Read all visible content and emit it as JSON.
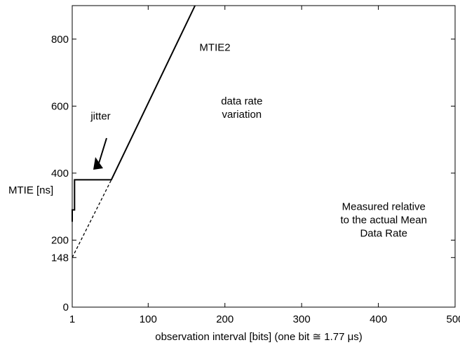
{
  "chart_data": {
    "type": "line",
    "title": "",
    "xlabel": "observation interval  [bits]  (one bit ≅ 1.77 μs)",
    "ylabel": "MTIE  [ns]",
    "xlim": [
      1,
      500
    ],
    "ylim": [
      0,
      900
    ],
    "x_ticks": [
      {
        "value": 1,
        "label": "1"
      },
      {
        "value": 100,
        "label": "100"
      },
      {
        "value": 200,
        "label": "200"
      },
      {
        "value": 300,
        "label": "300"
      },
      {
        "value": 400,
        "label": "400"
      },
      {
        "value": 500,
        "label": "500"
      }
    ],
    "y_ticks": [
      {
        "value": 0,
        "label": "0"
      },
      {
        "value": 148,
        "label": "148"
      },
      {
        "value": 200,
        "label": "200"
      },
      {
        "value": 400,
        "label": "400"
      },
      {
        "value": 600,
        "label": "600"
      },
      {
        "value": 800,
        "label": "800"
      }
    ],
    "grid": false,
    "series": [
      {
        "style": "solid",
        "points": [
          [
            1,
            255
          ],
          [
            1,
            290
          ],
          [
            4,
            290
          ],
          [
            4,
            380
          ],
          [
            50,
            380
          ],
          [
            52,
            380
          ],
          [
            161,
            900
          ]
        ]
      },
      {
        "style": "dashed",
        "points": [
          [
            1,
            148
          ],
          [
            52,
            380
          ]
        ]
      }
    ],
    "annotations": [
      {
        "text": "MTIE2",
        "x": 187,
        "y": 765
      },
      {
        "text": "jitter",
        "x": 38,
        "y": 560
      },
      {
        "text": "data rate",
        "x": 222,
        "y": 605
      },
      {
        "text": "variation",
        "x": 222,
        "y": 565
      },
      {
        "text": "Measured relative",
        "x": 407,
        "y": 290
      },
      {
        "text": "to the actual Mean",
        "x": 407,
        "y": 250
      },
      {
        "text": "Data Rate",
        "x": 407,
        "y": 210
      }
    ]
  }
}
